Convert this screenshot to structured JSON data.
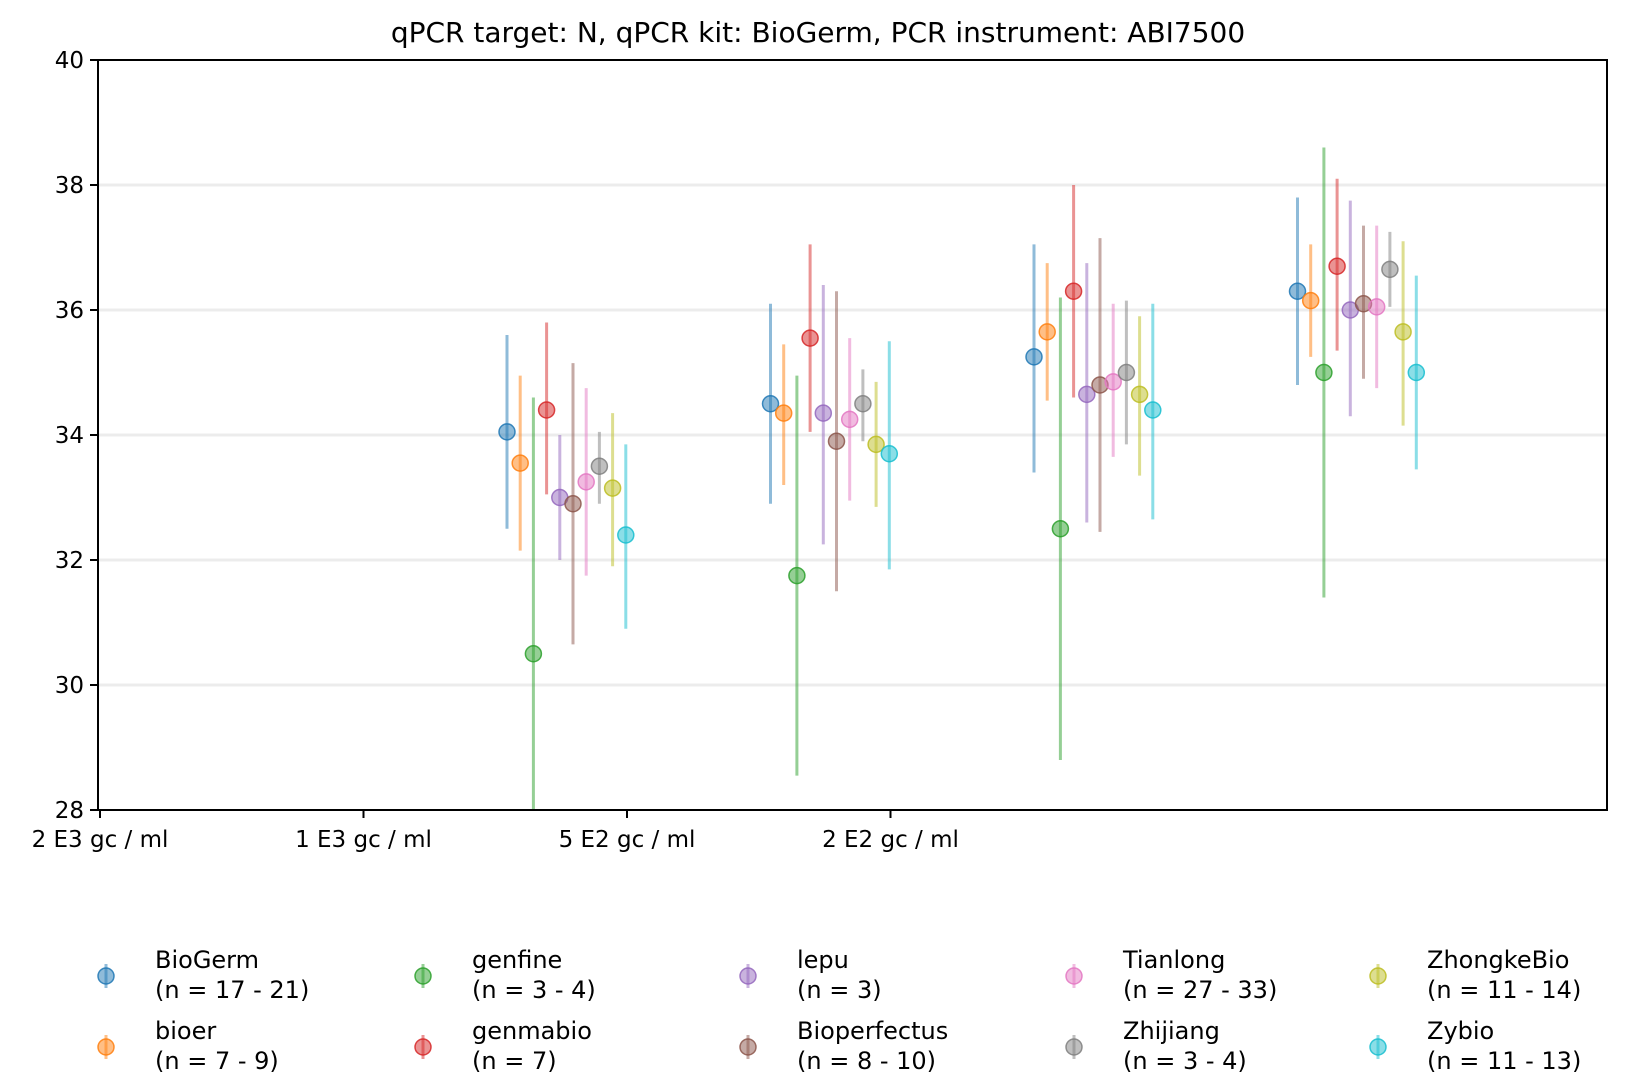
{
  "chart_data": {
    "type": "scatter",
    "title": "qPCR target: N, qPCR kit: BioGerm, PCR instrument: ABI7500",
    "xlabel": "",
    "ylabel": "",
    "ylim": [
      28,
      40
    ],
    "yticks": [
      28,
      30,
      32,
      34,
      36,
      38,
      40
    ],
    "x_tick_labels": [
      "2 E3 gc / ml",
      "1 E3 gc / ml",
      "5 E2 gc / ml",
      "2 E2 gc / ml"
    ],
    "grid": "horizontal",
    "legend_position": "bottom",
    "groups": 6,
    "series": [
      {
        "name": "BioGerm",
        "count_label": "(n = 17 - 21)",
        "color": "#1f77b4",
        "points": [
          {
            "group": 3,
            "mean": 34.05,
            "low": 32.5,
            "high": 35.6
          },
          {
            "group": 4,
            "mean": 34.5,
            "low": 32.9,
            "high": 36.1
          },
          {
            "group": 5,
            "mean": 35.25,
            "low": 33.4,
            "high": 37.05
          },
          {
            "group": 6,
            "mean": 36.3,
            "low": 34.8,
            "high": 37.8
          }
        ]
      },
      {
        "name": "bioer",
        "count_label": "(n = 7 - 9)",
        "color": "#ff7f0e",
        "points": [
          {
            "group": 3,
            "mean": 33.55,
            "low": 32.15,
            "high": 34.95
          },
          {
            "group": 4,
            "mean": 34.35,
            "low": 33.2,
            "high": 35.45
          },
          {
            "group": 5,
            "mean": 35.65,
            "low": 34.55,
            "high": 36.75
          },
          {
            "group": 6,
            "mean": 36.15,
            "low": 35.25,
            "high": 37.05
          }
        ]
      },
      {
        "name": "genfine",
        "count_label": "(n = 3 - 4)",
        "color": "#2ca02c",
        "points": [
          {
            "group": 3,
            "mean": 30.5,
            "low": 28.0,
            "high": 34.6
          },
          {
            "group": 4,
            "mean": 31.75,
            "low": 28.55,
            "high": 34.95
          },
          {
            "group": 5,
            "mean": 32.5,
            "low": 28.8,
            "high": 36.2
          },
          {
            "group": 6,
            "mean": 35.0,
            "low": 31.4,
            "high": 38.6
          }
        ]
      },
      {
        "name": "genmabio",
        "count_label": "(n = 7)",
        "color": "#d62728",
        "points": [
          {
            "group": 3,
            "mean": 34.4,
            "low": 33.05,
            "high": 35.8
          },
          {
            "group": 4,
            "mean": 35.55,
            "low": 34.05,
            "high": 37.05
          },
          {
            "group": 5,
            "mean": 36.3,
            "low": 34.6,
            "high": 38.0
          },
          {
            "group": 6,
            "mean": 36.7,
            "low": 35.35,
            "high": 38.1
          }
        ]
      },
      {
        "name": "lepu",
        "count_label": "(n = 3)",
        "color": "#9467bd",
        "points": [
          {
            "group": 3,
            "mean": 33.0,
            "low": 32.0,
            "high": 34.0
          },
          {
            "group": 4,
            "mean": 34.35,
            "low": 32.25,
            "high": 36.4
          },
          {
            "group": 5,
            "mean": 34.65,
            "low": 32.6,
            "high": 36.75
          },
          {
            "group": 6,
            "mean": 36.0,
            "low": 34.3,
            "high": 37.75
          }
        ]
      },
      {
        "name": "Bioperfectus",
        "count_label": "(n = 8 - 10)",
        "color": "#8c564b",
        "points": [
          {
            "group": 3,
            "mean": 32.9,
            "low": 30.65,
            "high": 35.15
          },
          {
            "group": 4,
            "mean": 33.9,
            "low": 31.5,
            "high": 36.3
          },
          {
            "group": 5,
            "mean": 34.8,
            "low": 32.45,
            "high": 37.15
          },
          {
            "group": 6,
            "mean": 36.1,
            "low": 34.9,
            "high": 37.35
          }
        ]
      },
      {
        "name": "Tianlong",
        "count_label": "(n = 27 - 33)",
        "color": "#e377c2",
        "points": [
          {
            "group": 3,
            "mean": 33.25,
            "low": 31.75,
            "high": 34.75
          },
          {
            "group": 4,
            "mean": 34.25,
            "low": 32.95,
            "high": 35.55
          },
          {
            "group": 5,
            "mean": 34.85,
            "low": 33.65,
            "high": 36.1
          },
          {
            "group": 6,
            "mean": 36.05,
            "low": 34.75,
            "high": 37.35
          }
        ]
      },
      {
        "name": "Zhijiang",
        "count_label": "(n = 3 - 4)",
        "color": "#7f7f7f",
        "points": [
          {
            "group": 3,
            "mean": 33.5,
            "low": 32.9,
            "high": 34.05
          },
          {
            "group": 4,
            "mean": 34.5,
            "low": 33.9,
            "high": 35.05
          },
          {
            "group": 5,
            "mean": 35.0,
            "low": 33.85,
            "high": 36.15
          },
          {
            "group": 6,
            "mean": 36.65,
            "low": 36.05,
            "high": 37.25
          }
        ]
      },
      {
        "name": "ZhongkeBio",
        "count_label": "(n = 11 - 14)",
        "color": "#bcbd22",
        "points": [
          {
            "group": 3,
            "mean": 33.15,
            "low": 31.9,
            "high": 34.35
          },
          {
            "group": 4,
            "mean": 33.85,
            "low": 32.85,
            "high": 34.85
          },
          {
            "group": 5,
            "mean": 34.65,
            "low": 33.35,
            "high": 35.9
          },
          {
            "group": 6,
            "mean": 35.65,
            "low": 34.15,
            "high": 37.1
          }
        ]
      },
      {
        "name": "Zybio",
        "count_label": "(n = 11 - 13)",
        "color": "#17becf",
        "points": [
          {
            "group": 3,
            "mean": 32.4,
            "low": 30.9,
            "high": 33.85
          },
          {
            "group": 4,
            "mean": 33.7,
            "low": 31.85,
            "high": 35.5
          },
          {
            "group": 5,
            "mean": 34.4,
            "low": 32.65,
            "high": 36.1
          },
          {
            "group": 6,
            "mean": 35.0,
            "low": 33.45,
            "high": 36.55
          }
        ]
      }
    ]
  }
}
